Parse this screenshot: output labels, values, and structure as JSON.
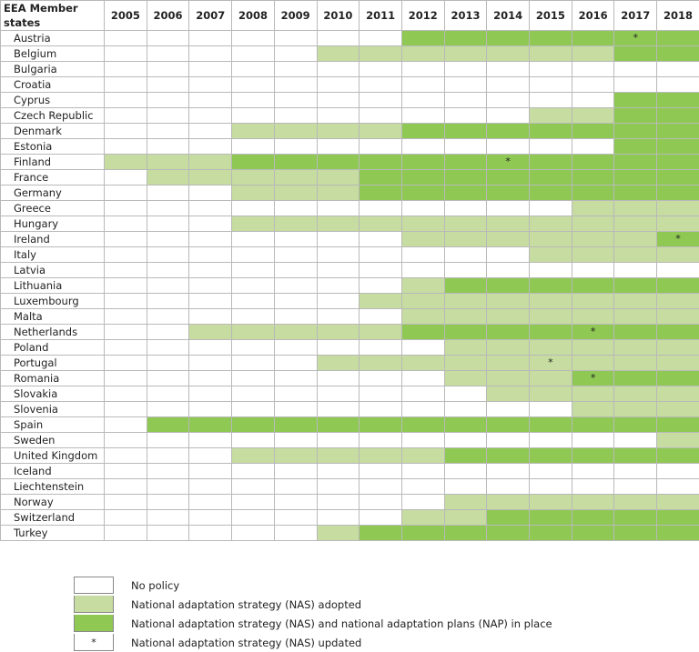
{
  "chart_data": {
    "type": "table",
    "header_label": "EEA Member states",
    "years": [
      "2005",
      "2006",
      "2007",
      "2008",
      "2009",
      "2010",
      "2011",
      "2012",
      "2013",
      "2014",
      "2015",
      "2016",
      "2017",
      "2018"
    ],
    "colors": {
      "0": "#ffffff",
      "1": "#c6dca0",
      "2": "#8fc954"
    },
    "rows": [
      {
        "country": "Austria",
        "status": [
          0,
          0,
          0,
          0,
          0,
          0,
          0,
          2,
          2,
          2,
          2,
          2,
          2,
          2
        ],
        "updated": [
          "2017"
        ]
      },
      {
        "country": "Belgium",
        "status": [
          0,
          0,
          0,
          0,
          0,
          1,
          1,
          1,
          1,
          1,
          1,
          1,
          2,
          2
        ],
        "updated": []
      },
      {
        "country": "Bulgaria",
        "status": [
          0,
          0,
          0,
          0,
          0,
          0,
          0,
          0,
          0,
          0,
          0,
          0,
          0,
          0
        ],
        "updated": []
      },
      {
        "country": "Croatia",
        "status": [
          0,
          0,
          0,
          0,
          0,
          0,
          0,
          0,
          0,
          0,
          0,
          0,
          0,
          0
        ],
        "updated": []
      },
      {
        "country": "Cyprus",
        "status": [
          0,
          0,
          0,
          0,
          0,
          0,
          0,
          0,
          0,
          0,
          0,
          0,
          2,
          2
        ],
        "updated": []
      },
      {
        "country": "Czech Republic",
        "status": [
          0,
          0,
          0,
          0,
          0,
          0,
          0,
          0,
          0,
          0,
          1,
          1,
          2,
          2
        ],
        "updated": []
      },
      {
        "country": "Denmark",
        "status": [
          0,
          0,
          0,
          1,
          1,
          1,
          1,
          2,
          2,
          2,
          2,
          2,
          2,
          2
        ],
        "updated": []
      },
      {
        "country": "Estonia",
        "status": [
          0,
          0,
          0,
          0,
          0,
          0,
          0,
          0,
          0,
          0,
          0,
          0,
          2,
          2
        ],
        "updated": []
      },
      {
        "country": "Finland",
        "status": [
          1,
          1,
          1,
          2,
          2,
          2,
          2,
          2,
          2,
          2,
          2,
          2,
          2,
          2
        ],
        "updated": [
          "2014"
        ]
      },
      {
        "country": "France",
        "status": [
          0,
          1,
          1,
          1,
          1,
          1,
          2,
          2,
          2,
          2,
          2,
          2,
          2,
          2
        ],
        "updated": []
      },
      {
        "country": "Germany",
        "status": [
          0,
          0,
          0,
          1,
          1,
          1,
          2,
          2,
          2,
          2,
          2,
          2,
          2,
          2
        ],
        "updated": []
      },
      {
        "country": "Greece",
        "status": [
          0,
          0,
          0,
          0,
          0,
          0,
          0,
          0,
          0,
          0,
          0,
          1,
          1,
          1
        ],
        "updated": []
      },
      {
        "country": "Hungary",
        "status": [
          0,
          0,
          0,
          1,
          1,
          1,
          1,
          1,
          1,
          1,
          1,
          1,
          1,
          1
        ],
        "updated": []
      },
      {
        "country": "Ireland",
        "status": [
          0,
          0,
          0,
          0,
          0,
          0,
          0,
          1,
          1,
          1,
          1,
          1,
          1,
          2
        ],
        "updated": [
          "2018"
        ]
      },
      {
        "country": "Italy",
        "status": [
          0,
          0,
          0,
          0,
          0,
          0,
          0,
          0,
          0,
          0,
          1,
          1,
          1,
          1
        ],
        "updated": []
      },
      {
        "country": "Latvia",
        "status": [
          0,
          0,
          0,
          0,
          0,
          0,
          0,
          0,
          0,
          0,
          0,
          0,
          0,
          0
        ],
        "updated": []
      },
      {
        "country": "Lithuania",
        "status": [
          0,
          0,
          0,
          0,
          0,
          0,
          0,
          1,
          2,
          2,
          2,
          2,
          2,
          2
        ],
        "updated": []
      },
      {
        "country": "Luxembourg",
        "status": [
          0,
          0,
          0,
          0,
          0,
          0,
          1,
          1,
          1,
          1,
          1,
          1,
          1,
          1
        ],
        "updated": []
      },
      {
        "country": "Malta",
        "status": [
          0,
          0,
          0,
          0,
          0,
          0,
          0,
          1,
          1,
          1,
          1,
          1,
          1,
          1
        ],
        "updated": []
      },
      {
        "country": "Netherlands",
        "status": [
          0,
          0,
          1,
          1,
          1,
          1,
          1,
          2,
          2,
          2,
          2,
          2,
          2,
          2
        ],
        "updated": [
          "2016"
        ]
      },
      {
        "country": "Poland",
        "status": [
          0,
          0,
          0,
          0,
          0,
          0,
          0,
          0,
          1,
          1,
          1,
          1,
          1,
          1
        ],
        "updated": []
      },
      {
        "country": "Portugal",
        "status": [
          0,
          0,
          0,
          0,
          0,
          1,
          1,
          1,
          1,
          1,
          1,
          1,
          1,
          1
        ],
        "updated": [
          "2015"
        ]
      },
      {
        "country": "Romania",
        "status": [
          0,
          0,
          0,
          0,
          0,
          0,
          0,
          0,
          1,
          1,
          1,
          2,
          2,
          2
        ],
        "updated": [
          "2016"
        ]
      },
      {
        "country": "Slovakia",
        "status": [
          0,
          0,
          0,
          0,
          0,
          0,
          0,
          0,
          0,
          1,
          1,
          1,
          1,
          1
        ],
        "updated": []
      },
      {
        "country": "Slovenia",
        "status": [
          0,
          0,
          0,
          0,
          0,
          0,
          0,
          0,
          0,
          0,
          0,
          1,
          1,
          1
        ],
        "updated": []
      },
      {
        "country": "Spain",
        "status": [
          0,
          2,
          2,
          2,
          2,
          2,
          2,
          2,
          2,
          2,
          2,
          2,
          2,
          2
        ],
        "updated": []
      },
      {
        "country": "Sweden",
        "status": [
          0,
          0,
          0,
          0,
          0,
          0,
          0,
          0,
          0,
          0,
          0,
          0,
          0,
          1
        ],
        "updated": []
      },
      {
        "country": "United Kingdom",
        "status": [
          0,
          0,
          0,
          1,
          1,
          1,
          1,
          1,
          2,
          2,
          2,
          2,
          2,
          2
        ],
        "updated": []
      },
      {
        "country": "Iceland",
        "status": [
          0,
          0,
          0,
          0,
          0,
          0,
          0,
          0,
          0,
          0,
          0,
          0,
          0,
          0
        ],
        "updated": []
      },
      {
        "country": "Liechtenstein",
        "status": [
          0,
          0,
          0,
          0,
          0,
          0,
          0,
          0,
          0,
          0,
          0,
          0,
          0,
          0
        ],
        "updated": []
      },
      {
        "country": "Norway",
        "status": [
          0,
          0,
          0,
          0,
          0,
          0,
          0,
          0,
          1,
          1,
          1,
          1,
          1,
          1
        ],
        "updated": []
      },
      {
        "country": "Switzerland",
        "status": [
          0,
          0,
          0,
          0,
          0,
          0,
          0,
          1,
          1,
          2,
          2,
          2,
          2,
          2
        ],
        "updated": []
      },
      {
        "country": "Turkey",
        "status": [
          0,
          0,
          0,
          0,
          0,
          1,
          2,
          2,
          2,
          2,
          2,
          2,
          2,
          2
        ],
        "updated": []
      }
    ],
    "legend": [
      {
        "code": "0",
        "label": "No policy",
        "marker": ""
      },
      {
        "code": "1",
        "label": "National adaptation strategy (NAS) adopted",
        "marker": ""
      },
      {
        "code": "2",
        "label": "National adaptation strategy (NAS) and national adaptation plans (NAP) in place",
        "marker": ""
      },
      {
        "code": "0",
        "label": "National adaptation strategy (NAS) updated",
        "marker": "*"
      }
    ],
    "update_marker": "*"
  }
}
